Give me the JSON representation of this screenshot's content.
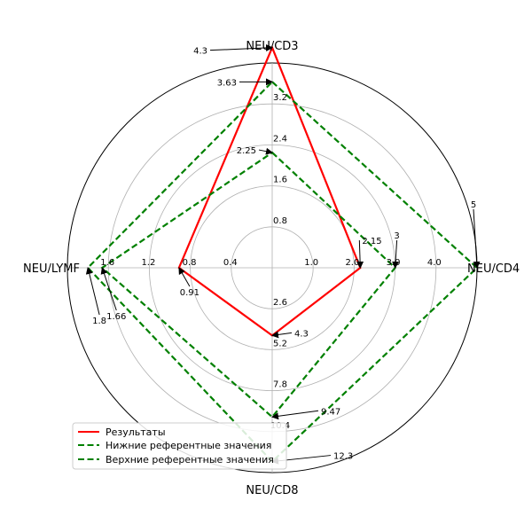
{
  "chart_data": {
    "type": "radar",
    "axes": [
      {
        "label": "NEU/CD3",
        "ticks": [
          "0.8",
          "1.6",
          "2.4",
          "3.2"
        ],
        "tick_values": [
          0.8,
          1.6,
          2.4,
          3.2
        ],
        "max": 4.0
      },
      {
        "label": "NEU/CD4",
        "ticks": [
          "1.0",
          "2.0",
          "3.0",
          "4.0"
        ],
        "tick_values": [
          1.0,
          2.0,
          3.0,
          4.0
        ],
        "max": 5.0
      },
      {
        "label": "NEU/CD8",
        "ticks": [
          "2.6",
          "5.2",
          "7.8",
          "10.4"
        ],
        "tick_values": [
          2.6,
          5.2,
          7.8,
          10.4
        ],
        "max": 13.0
      },
      {
        "label": "NEU/LYMF",
        "ticks": [
          "0.4",
          "0.8",
          "1.2",
          "1.6"
        ],
        "tick_values": [
          0.4,
          0.8,
          1.2,
          1.6
        ],
        "max": 2.0
      }
    ],
    "series": [
      {
        "name": "Результаты",
        "values": [
          4.3,
          2.15,
          4.3,
          0.91
        ],
        "color": "#ff0000",
        "dashed": false
      },
      {
        "name": "Нижние референтные значения",
        "values": [
          2.25,
          3,
          9.47,
          1.66
        ],
        "color": "#008000",
        "dashed": true
      },
      {
        "name": "Верхние референтные значения",
        "values": [
          3.63,
          5,
          12.3,
          1.8
        ],
        "color": "#008000",
        "dashed": true
      }
    ],
    "annotations": [
      {
        "axis": 0,
        "value": 4.3,
        "text": "4.3",
        "dx": -73,
        "dy": 3,
        "anchor": "end"
      },
      {
        "axis": 0,
        "value": 3.63,
        "text": "3.63",
        "dx": -40,
        "dy": 0,
        "anchor": "end"
      },
      {
        "axis": 0,
        "value": 2.25,
        "text": "2.25",
        "dx": -18,
        "dy": -3,
        "anchor": "end"
      },
      {
        "axis": 1,
        "value": 2.15,
        "text": "2.15",
        "dx": 2,
        "dy": -31,
        "anchor": "start"
      },
      {
        "axis": 1,
        "value": 3,
        "text": "3",
        "dx": 2,
        "dy": -37,
        "anchor": "middle"
      },
      {
        "axis": 1,
        "value": 5,
        "text": "5",
        "dx": -4,
        "dy": -72,
        "anchor": "middle"
      },
      {
        "axis": 2,
        "value": 4.3,
        "text": "4.3",
        "dx": 25,
        "dy": -3,
        "anchor": "start"
      },
      {
        "axis": 2,
        "value": 9.47,
        "text": "9.47",
        "dx": 55,
        "dy": -7,
        "anchor": "start"
      },
      {
        "axis": 2,
        "value": 12.3,
        "text": "12.3",
        "dx": 69,
        "dy": -7,
        "anchor": "start"
      },
      {
        "axis": 3,
        "value": 0.91,
        "text": "0.91",
        "dx": 12,
        "dy": 27,
        "anchor": "middle"
      },
      {
        "axis": 3,
        "value": 1.66,
        "text": "1.66",
        "dx": 16,
        "dy": 54,
        "anchor": "middle"
      },
      {
        "axis": 3,
        "value": 1.8,
        "text": "1.8",
        "dx": 13,
        "dy": 59,
        "anchor": "middle"
      }
    ],
    "grid": true,
    "legend_position": "lower-left"
  }
}
